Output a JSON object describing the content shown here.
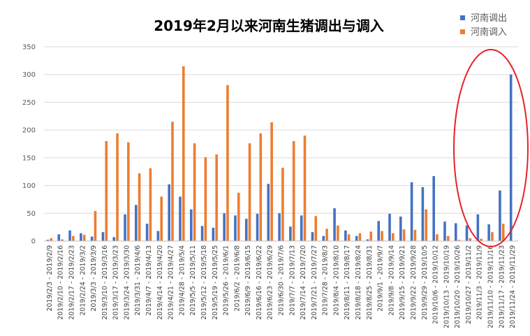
{
  "chart_data": {
    "type": "bar",
    "title": "2019年2月以来河南生猪调出与调入",
    "xlabel": "",
    "ylabel": "",
    "ylim": [
      0,
      350
    ],
    "yticks": [
      0,
      50,
      100,
      150,
      200,
      250,
      300,
      350
    ],
    "grid": true,
    "legend_position": "top-right",
    "categories": [
      "2019/2/3 - 2019/2/9",
      "2019/2/10 - 2019/2/16",
      "2019/2/17 - 2019/2/23",
      "2019/2/24 - 2019/3/2",
      "2019/3/3 - 2019/3/9",
      "2019/3/10 - 2019/3/16",
      "2019/3/17 - 2019/3/23",
      "2019/3/24 - 2019/3/30",
      "2019/3/31 - 2019/4/6",
      "2019/4/7 - 2019/4/13",
      "2019/4/14 - 2019/4/20",
      "2019/4/21 - 2019/4/27",
      "2019/4/28 - 2019/5/4",
      "2019/5/5 - 2019/5/11",
      "2019/5/12 - 2019/5/18",
      "2019/5/19 - 2019/5/25",
      "2019/5/26 - 2019/6/1",
      "2019/6/2 - 2019/6/8",
      "2019/6/9 - 2019/6/15",
      "2019/6/16 - 2019/6/22",
      "2019/6/23 - 2019/6/29",
      "2019/6/30 - 2019/7/6",
      "2019/7/7 - 2019/7/13",
      "2019/7/14 - 2019/7/20",
      "2019/7/21 - 2019/7/27",
      "2019/7/28 - 2019/8/3",
      "2019/8/4 - 2019/8/10",
      "2019/8/11 - 2019/8/17",
      "2019/8/18 - 2019/8/24",
      "2019/8/25 - 2019/8/31",
      "2019/9/1 - 2019/9/7",
      "2019/9/8 - 2019/9/14",
      "2019/9/15 - 2019/9/21",
      "2019/9/22 - 2019/9/28",
      "2019/9/29 - 2019/10/5",
      "2019/10/6 - 2019/10/12",
      "2019/10/13 - 2019/10/19",
      "2019/10/20 - 2019/10/26",
      "2019/10/27 - 2019/11/2",
      "2019/11/3 - 2019/11/9",
      "2019/11/10 - 2019/11/16",
      "2019/11/17 - 2019/11/23",
      "2019/11/24 - 2019/11/29"
    ],
    "series": [
      {
        "name": "河南调出",
        "color": "#4472C4",
        "values": [
          2,
          12,
          19,
          14,
          8,
          16,
          7,
          48,
          65,
          31,
          18,
          102,
          80,
          57,
          27,
          24,
          50,
          46,
          40,
          49,
          103,
          50,
          26,
          46,
          16,
          9,
          59,
          19,
          9,
          3,
          36,
          49,
          44,
          106,
          97,
          117,
          35,
          32,
          28,
          48,
          30,
          91,
          300
        ]
      },
      {
        "name": "河南调入",
        "color": "#ED7D31",
        "values": [
          5,
          3,
          9,
          11,
          54,
          180,
          194,
          178,
          122,
          131,
          80,
          215,
          315,
          176,
          151,
          156,
          281,
          87,
          176,
          194,
          214,
          132,
          180,
          190,
          45,
          22,
          28,
          12,
          14,
          17,
          18,
          14,
          21,
          20,
          57,
          12,
          9,
          2,
          5,
          4,
          16,
          31,
          0
        ]
      }
    ],
    "annotation": {
      "type": "ellipse",
      "color": "#E8202A",
      "highlight": "last-five-weeks"
    }
  }
}
